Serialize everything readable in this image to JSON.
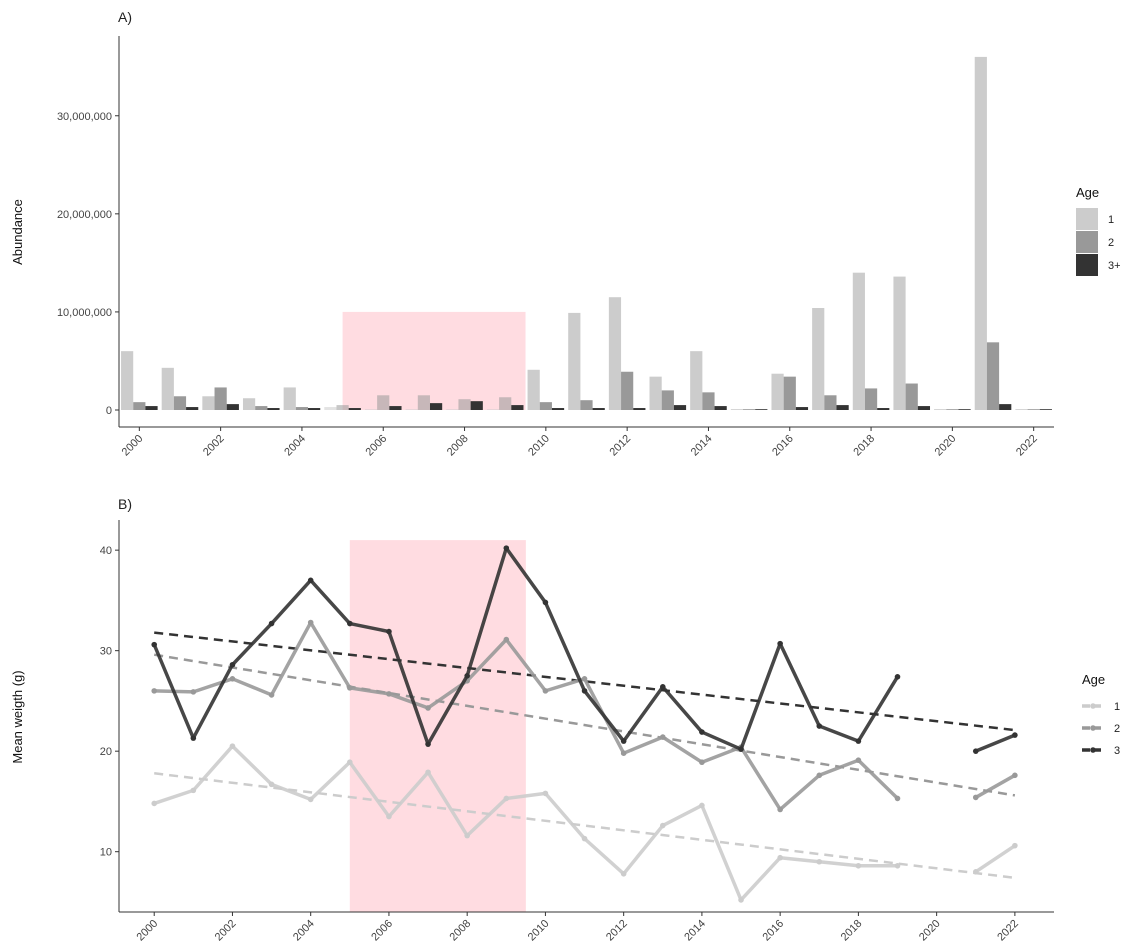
{
  "colors": {
    "age_1": "#cccccc",
    "age_2": "#999999",
    "age_3": "#333333",
    "highlight": "#ffc0c8",
    "axis": "#333333"
  },
  "chart_data": [
    {
      "panel_label": "A)",
      "type": "bar",
      "ylabel": "Abundance",
      "xlabel": "",
      "ylim": [
        0,
        36500000
      ],
      "yticks": [
        0,
        10000000,
        20000000,
        30000000
      ],
      "ytick_labels": [
        "0",
        "10,000,000",
        "20,000,000",
        "30,000,000"
      ],
      "xlim": [
        1999.5,
        2022.5
      ],
      "xticks": [
        2000,
        2002,
        2004,
        2006,
        2008,
        2010,
        2012,
        2014,
        2016,
        2018,
        2020,
        2022
      ],
      "xtick_labels": [
        "2000",
        "2002",
        "2004",
        "2006",
        "2008",
        "2010",
        "2012",
        "2014",
        "2016",
        "2018",
        "2020",
        "2022"
      ],
      "highlight": {
        "x_from": 2005,
        "x_to": 2009.5,
        "y_to": 10000000
      },
      "legend": {
        "title": "Age",
        "position": "right"
      },
      "categories": [
        2000,
        2001,
        2002,
        2003,
        2004,
        2005,
        2006,
        2007,
        2008,
        2009,
        2010,
        2011,
        2012,
        2013,
        2014,
        2015,
        2016,
        2017,
        2018,
        2019,
        2020,
        2021,
        2022
      ],
      "series": [
        {
          "name": "1",
          "color_key": "age_1",
          "values": [
            6000000,
            4300000,
            1400000,
            1200000,
            2300000,
            300000,
            0,
            0,
            0,
            0,
            4100000,
            9900000,
            11500000,
            3400000,
            6000000,
            50000,
            3700000,
            10400000,
            14000000,
            13600000,
            50000,
            36000000,
            50000
          ]
        },
        {
          "name": "2",
          "color_key": "age_2",
          "values": [
            800000,
            1400000,
            2300000,
            400000,
            300000,
            500000,
            1500000,
            1500000,
            1100000,
            1300000,
            800000,
            1000000,
            3900000,
            2000000,
            1800000,
            50000,
            3400000,
            1500000,
            2200000,
            2700000,
            50000,
            6900000,
            50000
          ]
        },
        {
          "name": "3+",
          "color_key": "age_3",
          "values": [
            400000,
            300000,
            600000,
            200000,
            200000,
            200000,
            400000,
            700000,
            900000,
            500000,
            200000,
            200000,
            200000,
            500000,
            400000,
            50000,
            300000,
            500000,
            200000,
            400000,
            50000,
            600000,
            50000
          ]
        }
      ],
      "shaded_series_in_highlight": [
        {
          "name": "1",
          "values": [
            0,
            0,
            0,
            0
          ]
        },
        {
          "name": "2",
          "values": [
            0,
            0,
            0,
            0
          ]
        }
      ]
    },
    {
      "panel_label": "B)",
      "type": "line",
      "ylabel": "Mean weigth (g)",
      "xlabel": "",
      "ylim": [
        4,
        43
      ],
      "yticks": [
        10,
        20,
        30,
        40
      ],
      "ytick_labels": [
        "10",
        "20",
        "30",
        "40"
      ],
      "xlim": [
        1999.1,
        2023
      ],
      "xticks": [
        2000,
        2002,
        2004,
        2006,
        2008,
        2010,
        2012,
        2014,
        2016,
        2018,
        2020,
        2022
      ],
      "xtick_labels": [
        "2000",
        "2002",
        "2004",
        "2006",
        "2008",
        "2010",
        "2012",
        "2014",
        "2016",
        "2018",
        "2020",
        "2022"
      ],
      "highlight": {
        "x_from": 2005,
        "x_to": 2009.5,
        "y_to": 41
      },
      "legend": {
        "title": "Age",
        "position": "right"
      },
      "series": [
        {
          "name": "1",
          "color_key": "age_1",
          "x": [
            2000,
            2001,
            2002,
            2003,
            2004,
            2005,
            2006,
            2007,
            2008,
            2009,
            2010,
            2011,
            2012,
            2013,
            2014,
            2015,
            2016,
            2017,
            2018,
            2019,
            2021,
            2022
          ],
          "y": [
            14.8,
            16.1,
            20.5,
            16.7,
            15.2,
            18.9,
            13.5,
            17.9,
            11.6,
            15.3,
            15.8,
            11.3,
            7.8,
            12.6,
            14.6,
            5.2,
            9.4,
            9.0,
            8.6,
            8.6,
            8.0,
            10.6
          ],
          "trend": [
            17.8,
            7.4
          ]
        },
        {
          "name": "2",
          "color_key": "age_2",
          "x": [
            2000,
            2001,
            2002,
            2003,
            2004,
            2005,
            2006,
            2007,
            2008,
            2009,
            2010,
            2011,
            2012,
            2013,
            2014,
            2015,
            2016,
            2017,
            2018,
            2019,
            2021,
            2022
          ],
          "y": [
            26.0,
            25.9,
            27.2,
            25.6,
            32.8,
            26.3,
            25.7,
            24.3,
            27.0,
            31.1,
            26.0,
            27.2,
            19.8,
            21.4,
            18.9,
            20.4,
            14.2,
            17.6,
            19.1,
            15.3,
            15.4,
            17.6
          ],
          "trend": [
            29.6,
            15.6
          ]
        },
        {
          "name": "3",
          "color_key": "age_3",
          "x": [
            2000,
            2001,
            2002,
            2003,
            2004,
            2005,
            2006,
            2007,
            2008,
            2009,
            2010,
            2011,
            2012,
            2013,
            2014,
            2015,
            2016,
            2017,
            2018,
            2019,
            2021,
            2022
          ],
          "y": [
            30.6,
            21.3,
            28.6,
            32.7,
            37.0,
            32.7,
            31.9,
            20.7,
            27.5,
            40.2,
            34.8,
            26.0,
            21.0,
            26.4,
            21.9,
            20.2,
            30.7,
            22.5,
            21.0,
            27.4,
            20.0,
            21.6
          ],
          "trend": [
            31.8,
            22.1
          ]
        }
      ]
    }
  ]
}
